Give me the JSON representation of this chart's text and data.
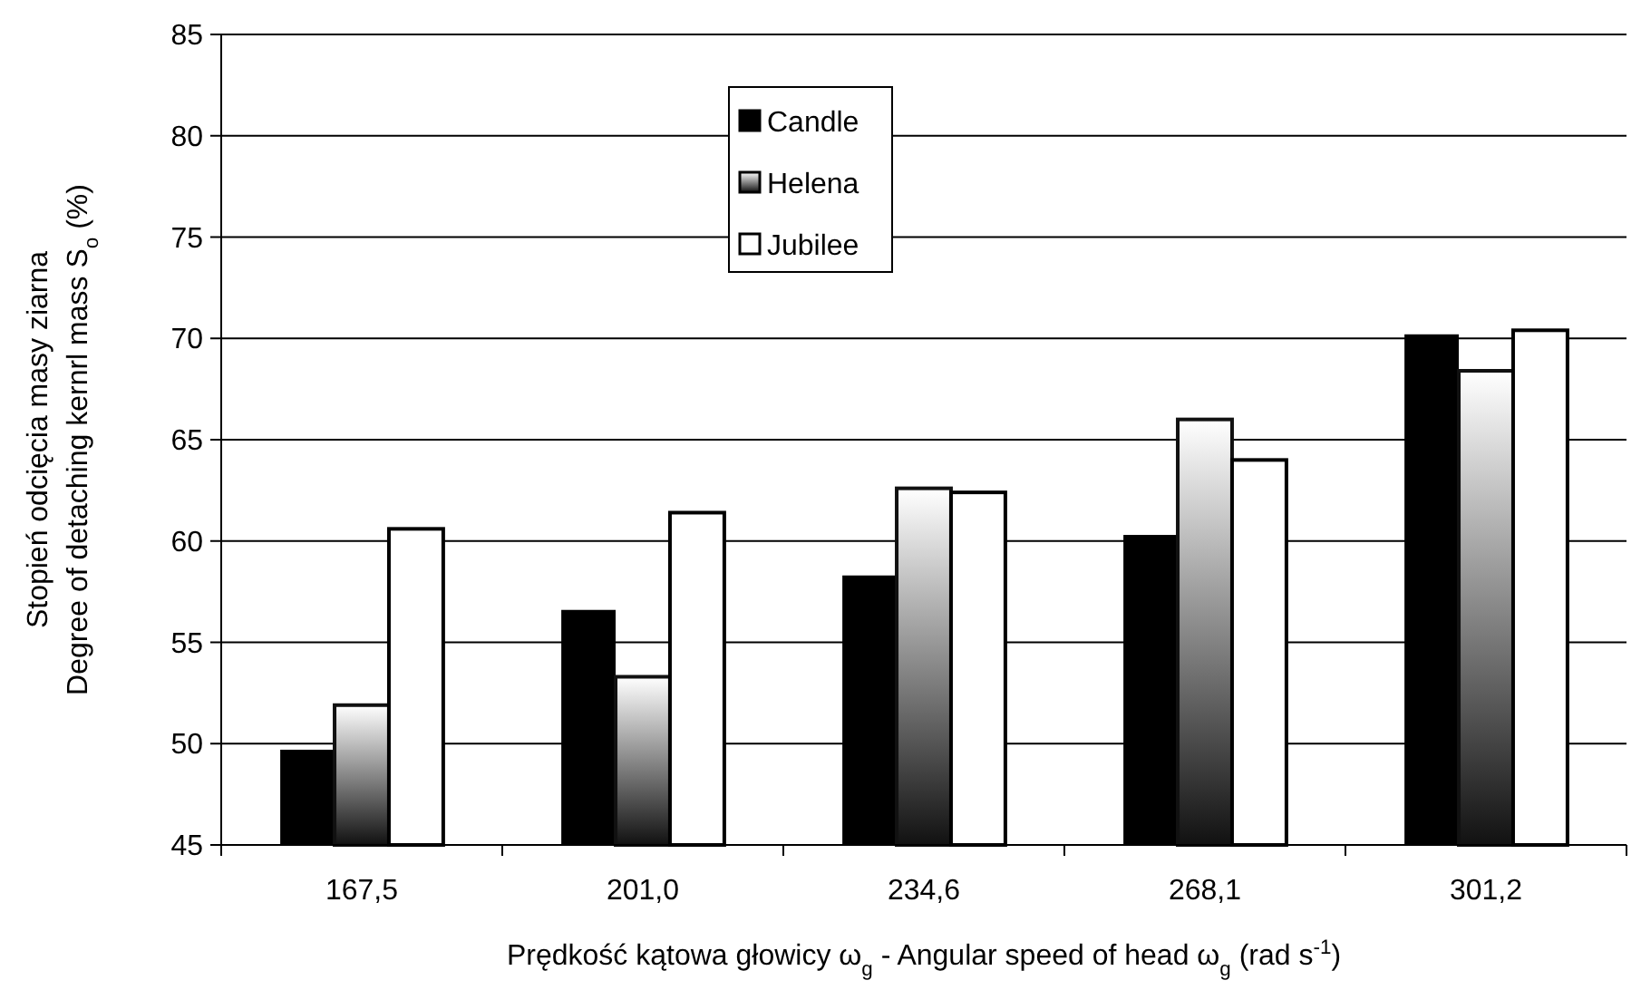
{
  "chart_data": {
    "type": "bar",
    "xlabel": "Prędkość kątowa głowicy ω$_{g}$  - Angular speed of head ω$_{g}$  (rad s$^{-1}$)",
    "ylabel": "Stopień odcięcia masy ziarna\nDegree of detaching kernrl mass S$_{o}$  (%)",
    "categories": [
      "167,5",
      "201,0",
      "234,6",
      "268,1",
      "301,2"
    ],
    "series": [
      {
        "name": "Candle",
        "color": "#000000",
        "values": [
          49.7,
          56.6,
          58.3,
          60.3,
          70.2
        ]
      },
      {
        "name": "Helena",
        "color": "#111111",
        "values": [
          51.9,
          53.3,
          62.6,
          66.0,
          68.4
        ]
      },
      {
        "name": "Jubilee",
        "color": "#ffffff",
        "values": [
          60.6,
          61.4,
          62.4,
          64.0,
          70.4
        ]
      }
    ],
    "ylim": [
      45,
      85
    ],
    "yticks": [
      45,
      50,
      55,
      60,
      65,
      70,
      75,
      80,
      85
    ],
    "grid": "y",
    "legend": "top"
  }
}
